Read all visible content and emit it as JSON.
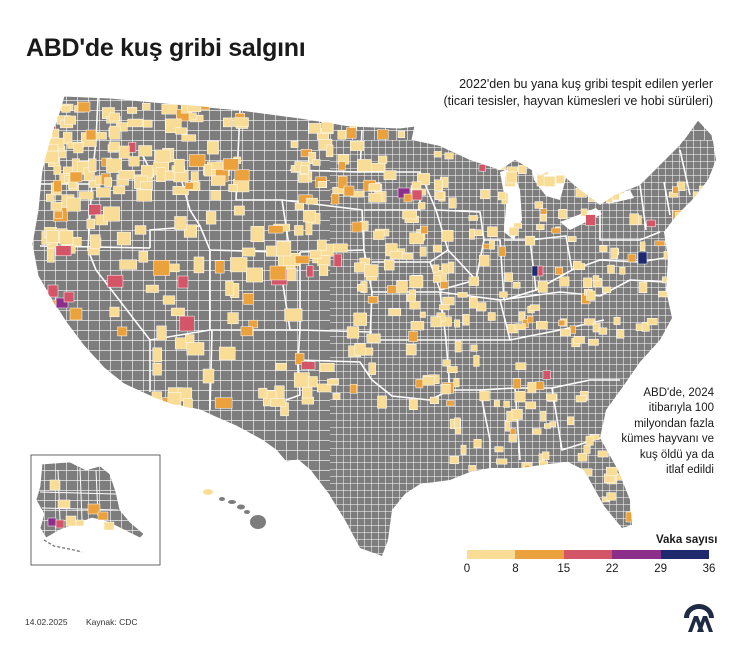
{
  "title": "ABD'de kuş gribi salgını",
  "subtitle_lines": [
    "2022'den bu yana  kuş gribi tespit edilen yerler",
    "(ticari tesisler, hayvan kümesleri ve hobi sürüleri)"
  ],
  "note_lines": [
    "ABD'de, 2024",
    "itibarıyla 100",
    "milyondan fazla",
    "kümes hayvanı ve",
    "kuş öldü ya da",
    "itlaf edildi"
  ],
  "legend": {
    "title": "Vaka sayısı",
    "ticks": [
      "0",
      "8",
      "15",
      "22",
      "29",
      "36"
    ],
    "colors": [
      "#f9dd96",
      "#eba23d",
      "#d45468",
      "#8b2f8b",
      "#1f2a6e"
    ]
  },
  "colors": {
    "no_detection": "#7d7d7d",
    "border": "#ffffff"
  },
  "footer": {
    "date": "14.02.2025",
    "source": "Kaynak: CDC"
  },
  "logo": "aa-logo-icon"
}
